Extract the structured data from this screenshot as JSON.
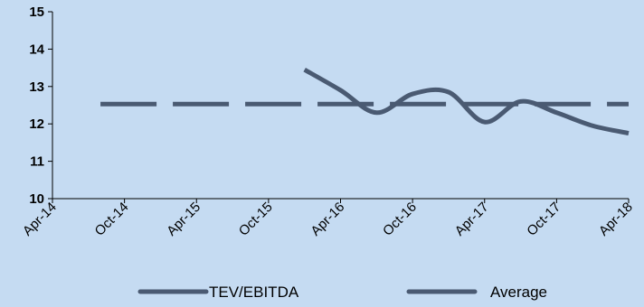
{
  "chart_data": {
    "type": "line",
    "title": "",
    "xlabel": "",
    "ylabel": "",
    "ylim": [
      10,
      15
    ],
    "yticks": [
      10,
      11,
      12,
      13,
      14,
      15
    ],
    "xticks": [
      "Apr-14",
      "Oct-14",
      "Apr-15",
      "Oct-15",
      "Apr-16",
      "Oct-16",
      "Apr-17",
      "Oct-17",
      "Apr-18"
    ],
    "grid": false,
    "legend_position": "bottom",
    "series": [
      {
        "name": "TEV/EBITDA",
        "color": "#4a5a72",
        "style": "solid",
        "points": [
          {
            "x": "Jan-16",
            "y": 13.45
          },
          {
            "x": "Apr-16",
            "y": 12.9
          },
          {
            "x": "Jul-16",
            "y": 12.3
          },
          {
            "x": "Oct-16",
            "y": 12.8
          },
          {
            "x": "Jan-17",
            "y": 12.85
          },
          {
            "x": "Apr-17",
            "y": 12.05
          },
          {
            "x": "Jul-17",
            "y": 12.6
          },
          {
            "x": "Oct-17",
            "y": 12.3
          },
          {
            "x": "Jan-18",
            "y": 11.95
          },
          {
            "x": "Apr-18",
            "y": 11.75
          }
        ]
      },
      {
        "name": "Average",
        "color": "#4a5a72",
        "style": "dashed",
        "points": [
          {
            "x": "Aug-14",
            "y": 12.53
          },
          {
            "x": "Apr-18",
            "y": 12.53
          }
        ]
      }
    ]
  }
}
